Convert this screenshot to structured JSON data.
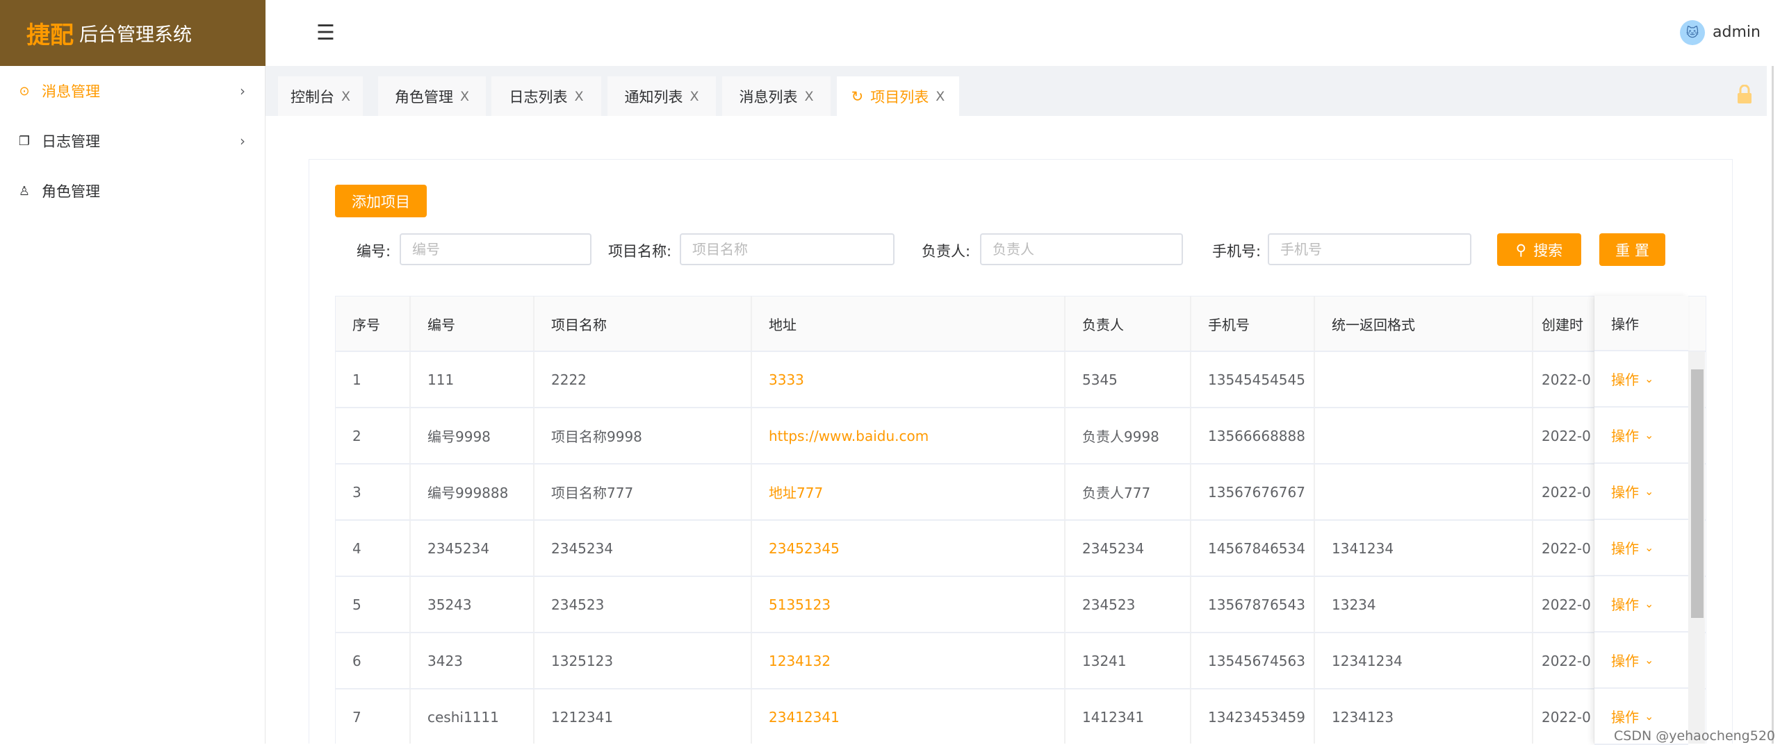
{
  "brand": {
    "logo_text": "捷配",
    "title": "后台管理系统",
    "color": "#7a5a25",
    "accent": "#ff9a00"
  },
  "sidebar": {
    "items": [
      {
        "label": "消息管理",
        "icon": "message-icon",
        "active": true,
        "has_children": true
      },
      {
        "label": "日志管理",
        "icon": "document-icon",
        "active": false,
        "has_children": true
      },
      {
        "label": "角色管理",
        "icon": "user-icon",
        "active": false,
        "has_children": false
      }
    ]
  },
  "header": {
    "username": "admin"
  },
  "tabs": [
    {
      "label": "控制台",
      "close": "X"
    },
    {
      "label": "角色管理",
      "close": "X"
    },
    {
      "label": "日志列表",
      "close": "X"
    },
    {
      "label": "通知列表",
      "close": "X"
    },
    {
      "label": "消息列表",
      "close": "X"
    },
    {
      "label": "项目列表",
      "close": "X",
      "active": true
    }
  ],
  "toolbar": {
    "add_label": "添加项目",
    "search_label": "搜索",
    "reset_label": "重 置"
  },
  "filters": [
    {
      "label": "编号:",
      "placeholder": "编号",
      "value": ""
    },
    {
      "label": "项目名称:",
      "placeholder": "项目名称",
      "value": ""
    },
    {
      "label": "负责人:",
      "placeholder": "负责人",
      "value": ""
    },
    {
      "label": "手机号:",
      "placeholder": "手机号",
      "value": ""
    }
  ],
  "table": {
    "columns": [
      "序号",
      "编号",
      "项目名称",
      "地址",
      "负责人",
      "手机号",
      "统一返回格式",
      "创建时"
    ],
    "action_column": "操作",
    "action_label": "操作",
    "rows": [
      [
        "1",
        "111",
        "2222",
        "3333",
        "5345",
        "13545454545",
        "",
        "2022-0"
      ],
      [
        "2",
        "编号9998",
        "项目名称9998",
        "https://www.baidu.com",
        "负责人9998",
        "13566668888",
        "",
        "2022-0"
      ],
      [
        "3",
        "编号999888",
        "项目名称777",
        "地址777",
        "负责人777",
        "13567676767",
        "",
        "2022-0"
      ],
      [
        "4",
        "2345234",
        "2345234",
        "23452345",
        "2345234",
        "14567846534",
        "1341234",
        "2022-0"
      ],
      [
        "5",
        "35243",
        "234523",
        "5135123",
        "234523",
        "13567876543",
        "13234",
        "2022-0"
      ],
      [
        "6",
        "3423",
        "1325123",
        "1234132",
        "13241",
        "13545674563",
        "12341234",
        "2022-0"
      ],
      [
        "7",
        "ceshi1111",
        "1212341",
        "23412341",
        "1412341",
        "13423453459",
        "1234123",
        "2022-0"
      ]
    ]
  },
  "watermark": "CSDN @yehaocheng520"
}
